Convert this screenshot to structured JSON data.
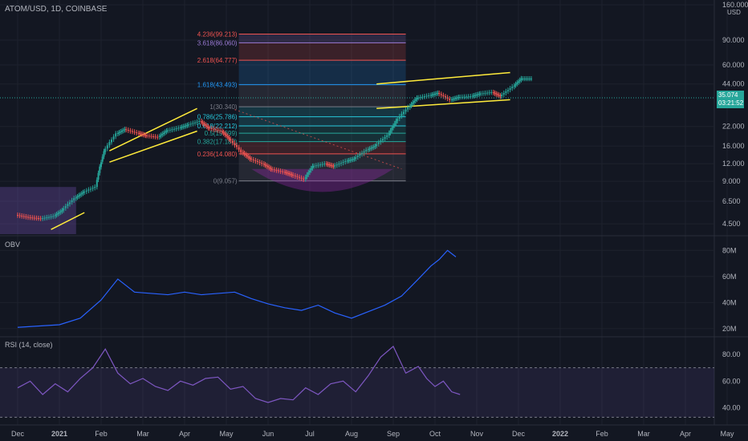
{
  "header": {
    "title": "ATOM/USD, 1D, COINBASE",
    "currency": "USD"
  },
  "panels": {
    "obv_label": "OBV",
    "rsi_label": "RSI (14, close)"
  },
  "current_price": {
    "value": "35.074",
    "countdown": "03:21:52",
    "color": "#26a69a"
  },
  "colors": {
    "bg": "#131722",
    "grid": "#1e222d",
    "up": "#26a69a",
    "down": "#ef5350",
    "channel": "#ffeb3b",
    "obv": "#2962ff",
    "rsi": "#7e57c2"
  },
  "chart_data": [
    {
      "type": "candlestick",
      "title": "ATOM/USD, 1D, COINBASE",
      "y_scale": "log",
      "ylim": [
        3.8,
        160
      ],
      "y_ticks": [
        "160.000",
        "90.000",
        "60.000",
        "44.000",
        "22.000",
        "16.000",
        "12.000",
        "9.000",
        "6.500",
        "4.500"
      ],
      "x_ticks": [
        "Dec",
        "2021",
        "Feb",
        "Mar",
        "Apr",
        "May",
        "Jun",
        "Jul",
        "Aug",
        "Sep",
        "Oct",
        "Nov",
        "Dec",
        "2022",
        "Feb",
        "Mar",
        "Apr",
        "May"
      ],
      "x_tick_positions_label": "months (Dec 2020 = 0)",
      "series": [
        {
          "name": "",
          "x": [
            0,
            0.3,
            0.6,
            0.9,
            1.1,
            1.4,
            1.6,
            1.9,
            2.1,
            2.4,
            2.6,
            2.9,
            3.1,
            3.4,
            3.6,
            3.9,
            4.1,
            4.4,
            4.6,
            4.9,
            5.1,
            5.4,
            5.6,
            5.9,
            6.1,
            6.4,
            6.6,
            6.9,
            7.1,
            7.4,
            7.6,
            7.9,
            8.1,
            8.4,
            8.6,
            8.9,
            9.1,
            9.4,
            9.6,
            9.9,
            10.1,
            10.4,
            10.6,
            10.9,
            11.1,
            11.4,
            11.6,
            11.9,
            12.1
          ],
          "close": [
            5.2,
            5.0,
            4.9,
            5.1,
            5.6,
            6.8,
            7.5,
            8.2,
            14.5,
            19.5,
            21.0,
            19.8,
            19.0,
            18.5,
            20.5,
            21.5,
            22.5,
            24.0,
            21.5,
            20.5,
            18.0,
            14.5,
            13.0,
            12.0,
            11.0,
            10.5,
            10.0,
            9.3,
            11.5,
            12.0,
            11.5,
            12.5,
            13.0,
            15.0,
            16.0,
            19.0,
            24.0,
            30.0,
            35.0,
            36.5,
            38.0,
            34.0,
            35.5,
            36.0,
            37.5,
            38.5,
            36.0,
            42.0,
            48.0
          ]
        }
      ],
      "fibonacci": [
        {
          "level": "4.236(99.213)",
          "value": 99.213,
          "color": "#ef5350"
        },
        {
          "level": "3.618(86.060)",
          "value": 86.06,
          "color": "#9c7bd6"
        },
        {
          "level": "2.618(64.777)",
          "value": 64.777,
          "color": "#ef5350"
        },
        {
          "level": "1.618(43.493)",
          "value": 43.493,
          "color": "#2196f3"
        },
        {
          "level": "1(30.340)",
          "value": 30.34,
          "color": "#787b86"
        },
        {
          "level": "0.786(25.786)",
          "value": 25.786,
          "color": "#26c6da"
        },
        {
          "level": "0.618(22.212)",
          "value": 22.212,
          "color": "#26c6da"
        },
        {
          "level": "0.5(19.699)",
          "value": 19.699,
          "color": "#26a69a"
        },
        {
          "level": "0.382(17.187)",
          "value": 17.187,
          "color": "#26a69a"
        },
        {
          "level": "0.236(14.080)",
          "value": 14.08,
          "color": "#ef5350"
        },
        {
          "level": "0(9.057)",
          "value": 9.057,
          "color": "#787b86"
        }
      ]
    },
    {
      "type": "line",
      "title": "OBV",
      "ylim": [
        15,
        90
      ],
      "y_ticks": [
        "80M",
        "60M",
        "40M",
        "20M"
      ],
      "series": [
        {
          "name": "OBV",
          "x": [
            0,
            0.5,
            1.0,
            1.5,
            2.0,
            2.4,
            2.8,
            3.2,
            3.6,
            4.0,
            4.4,
            4.8,
            5.2,
            5.6,
            6.0,
            6.4,
            6.8,
            7.2,
            7.6,
            8.0,
            8.4,
            8.8,
            9.2,
            9.6,
            9.9,
            10.1,
            10.3,
            10.5
          ],
          "values": [
            21,
            22,
            23,
            28,
            42,
            58,
            48,
            47,
            46,
            48,
            46,
            47,
            48,
            43,
            39,
            36,
            34,
            38,
            32,
            28,
            33,
            38,
            45,
            58,
            68,
            73,
            80,
            75
          ]
        }
      ]
    },
    {
      "type": "line",
      "title": "RSI (14, close)",
      "ylim": [
        32,
        92
      ],
      "y_ticks": [
        "80.00",
        "60.00",
        "40.00"
      ],
      "bands": [
        30,
        70
      ],
      "series": [
        {
          "name": "",
          "x": [
            0,
            0.3,
            0.6,
            0.9,
            1.2,
            1.5,
            1.8,
            2.1,
            2.4,
            2.7,
            3.0,
            3.3,
            3.6,
            3.9,
            4.2,
            4.5,
            4.8,
            5.1,
            5.4,
            5.7,
            6.0,
            6.3,
            6.6,
            6.9,
            7.2,
            7.5,
            7.8,
            8.1,
            8.4,
            8.7,
            9.0,
            9.3,
            9.6,
            9.8,
            10.0,
            10.2,
            10.4,
            10.6
          ],
          "values": [
            55,
            60,
            50,
            58,
            52,
            62,
            70,
            84,
            66,
            58,
            62,
            56,
            53,
            60,
            57,
            62,
            63,
            54,
            56,
            47,
            44,
            47,
            46,
            55,
            50,
            58,
            60,
            52,
            64,
            78,
            86,
            66,
            71,
            62,
            56,
            60,
            52,
            50
          ]
        }
      ]
    }
  ]
}
